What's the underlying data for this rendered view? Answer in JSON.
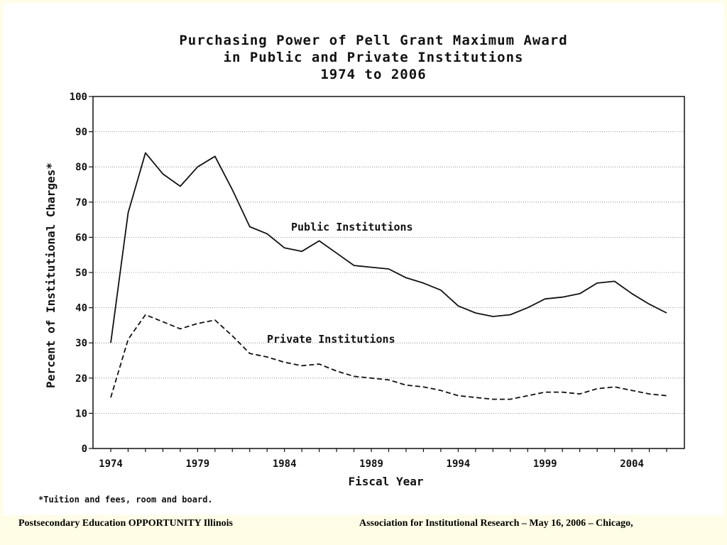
{
  "chart_data": {
    "type": "line",
    "title_lines": [
      "Purchasing Power of Pell Grant Maximum Award",
      "in Public and Private Institutions",
      "1974 to 2006"
    ],
    "xlabel": "Fiscal Year",
    "ylabel": "Percent of Institutional Charges*",
    "xlim": [
      1974,
      2006
    ],
    "ylim": [
      0,
      100
    ],
    "x_ticks": [
      1974,
      1979,
      1984,
      1989,
      1994,
      1999,
      2004
    ],
    "y_ticks": [
      0,
      10,
      20,
      30,
      40,
      50,
      60,
      70,
      80,
      90,
      100
    ],
    "grid": true,
    "x": [
      1974,
      1975,
      1976,
      1977,
      1978,
      1979,
      1980,
      1981,
      1982,
      1983,
      1984,
      1985,
      1986,
      1987,
      1988,
      1989,
      1990,
      1991,
      1992,
      1993,
      1994,
      1995,
      1996,
      1997,
      1998,
      1999,
      2000,
      2001,
      2002,
      2003,
      2004,
      2005,
      2006
    ],
    "series": [
      {
        "name": "Public Institutions",
        "style": "solid",
        "values": [
          30,
          67,
          84,
          78,
          74.5,
          80,
          83,
          73.5,
          63,
          61,
          57,
          56,
          59,
          55.5,
          52,
          51.5,
          51,
          48.5,
          47,
          45,
          40.5,
          38.5,
          37.5,
          38,
          40,
          42.5,
          43,
          44,
          47,
          47.5,
          44,
          41,
          38.5
        ]
      },
      {
        "name": "Private Institutions",
        "style": "dashed",
        "values": [
          14.5,
          31,
          38,
          36,
          34,
          35.5,
          36.5,
          32,
          27,
          26,
          24.5,
          23.5,
          24,
          22,
          20.5,
          20,
          19.5,
          18,
          17.5,
          16.5,
          15,
          14.5,
          14,
          14,
          15,
          16,
          16,
          15.5,
          17,
          17.5,
          16.5,
          15.5,
          15
        ]
      }
    ]
  },
  "footnote": "*Tuition and fees, room and board.",
  "footer": {
    "left": "Postsecondary Education OPPORTUNITY Illinois",
    "right": "Association for Institutional Research – May 16, 2006 – Chicago,"
  }
}
